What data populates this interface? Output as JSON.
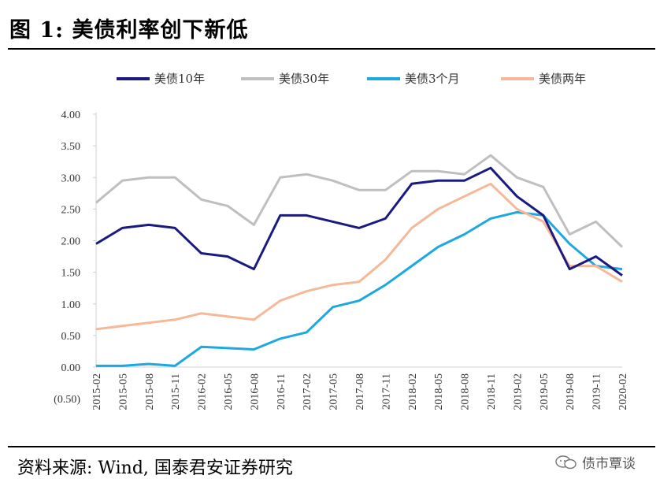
{
  "figure": {
    "title": "图 1:  美债利率创下新低",
    "source": "资料来源:  Wind,  国泰君安证券研究",
    "watermark": "债市覃谈"
  },
  "chart_data": {
    "type": "line",
    "title": "",
    "xlabel": "",
    "ylabel": "",
    "ylim": [
      -0.5,
      4.0
    ],
    "yticks": [
      "(0.50)",
      "0.00",
      "0.50",
      "1.00",
      "1.50",
      "2.00",
      "2.50",
      "3.00",
      "3.50",
      "4.00"
    ],
    "yticks_colors": {
      "(0.50)": "#e00000"
    },
    "xticks": [
      "2015-02",
      "2015-05",
      "2015-08",
      "2015-11",
      "2016-02",
      "2016-05",
      "2016-08",
      "2016-11",
      "2017-02",
      "2017-05",
      "2017-08",
      "2017-11",
      "2018-02",
      "2018-05",
      "2018-08",
      "2018-11",
      "2019-02",
      "2019-05",
      "2019-08",
      "2019-11",
      "2020-02"
    ],
    "grid": false,
    "legend_position": "top",
    "x": [
      "2015-02",
      "2015-05",
      "2015-08",
      "2015-11",
      "2016-02",
      "2016-05",
      "2016-08",
      "2016-11",
      "2017-02",
      "2017-05",
      "2017-08",
      "2017-11",
      "2018-02",
      "2018-05",
      "2018-08",
      "2018-11",
      "2019-02",
      "2019-05",
      "2019-08",
      "2019-11",
      "2020-02"
    ],
    "series": [
      {
        "name": "美债10年",
        "color": "#1a1a80",
        "values": [
          1.95,
          2.2,
          2.25,
          2.2,
          1.8,
          1.75,
          1.55,
          2.4,
          2.4,
          2.3,
          2.2,
          2.35,
          2.9,
          2.95,
          2.95,
          3.15,
          2.7,
          2.4,
          1.55,
          1.75,
          1.45
        ]
      },
      {
        "name": "美债30年",
        "color": "#bfbfbf",
        "values": [
          2.6,
          2.95,
          3.0,
          3.0,
          2.65,
          2.55,
          2.25,
          3.0,
          3.05,
          2.95,
          2.8,
          2.8,
          3.1,
          3.1,
          3.05,
          3.35,
          3.0,
          2.85,
          2.1,
          2.3,
          1.9
        ]
      },
      {
        "name": "美债3个月",
        "color": "#1ea8e0",
        "values": [
          0.02,
          0.02,
          0.05,
          0.02,
          0.32,
          0.3,
          0.28,
          0.45,
          0.55,
          0.95,
          1.05,
          1.3,
          1.6,
          1.9,
          2.1,
          2.35,
          2.45,
          2.4,
          1.95,
          1.6,
          1.55
        ]
      },
      {
        "name": "美债两年",
        "color": "#f5b899",
        "values": [
          0.6,
          0.65,
          0.7,
          0.75,
          0.85,
          0.8,
          0.75,
          1.05,
          1.2,
          1.3,
          1.35,
          1.7,
          2.2,
          2.5,
          2.7,
          2.9,
          2.5,
          2.3,
          1.6,
          1.6,
          1.35
        ]
      }
    ]
  }
}
